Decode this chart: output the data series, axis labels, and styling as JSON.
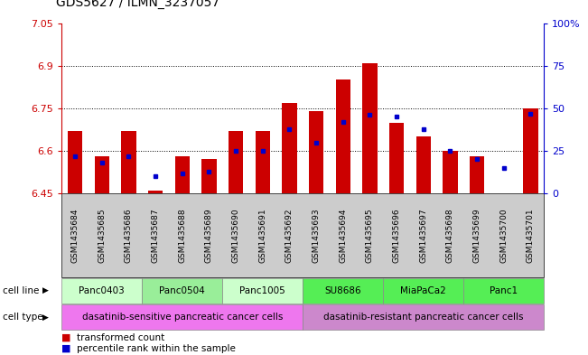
{
  "title": "GDS5627 / ILMN_3237057",
  "samples": [
    "GSM1435684",
    "GSM1435685",
    "GSM1435686",
    "GSM1435687",
    "GSM1435688",
    "GSM1435689",
    "GSM1435690",
    "GSM1435691",
    "GSM1435692",
    "GSM1435693",
    "GSM1435694",
    "GSM1435695",
    "GSM1435696",
    "GSM1435697",
    "GSM1435698",
    "GSM1435699",
    "GSM1435700",
    "GSM1435701"
  ],
  "bar_values": [
    6.67,
    6.58,
    6.67,
    6.46,
    6.58,
    6.57,
    6.67,
    6.67,
    6.77,
    6.74,
    6.85,
    6.91,
    6.7,
    6.65,
    6.6,
    6.58,
    6.45,
    6.75
  ],
  "percentile_values": [
    22,
    18,
    22,
    10,
    12,
    13,
    25,
    25,
    38,
    30,
    42,
    46,
    45,
    38,
    25,
    20,
    15,
    47
  ],
  "ymin": 6.45,
  "ymax": 7.05,
  "yticks": [
    6.45,
    6.6,
    6.75,
    6.9,
    7.05
  ],
  "ytick_labels": [
    "6.45",
    "6.6",
    "6.75",
    "6.9",
    "7.05"
  ],
  "right_yticks": [
    0,
    25,
    50,
    75,
    100
  ],
  "right_ytick_labels": [
    "0",
    "25",
    "50",
    "75",
    "100%"
  ],
  "bar_color": "#cc0000",
  "dot_color": "#0000cc",
  "baseline": 6.45,
  "cell_lines": [
    {
      "label": "Panc0403",
      "start": 0,
      "end": 3,
      "color": "#ccffcc"
    },
    {
      "label": "Panc0504",
      "start": 3,
      "end": 6,
      "color": "#99ee99"
    },
    {
      "label": "Panc1005",
      "start": 6,
      "end": 9,
      "color": "#ccffcc"
    },
    {
      "label": "SU8686",
      "start": 9,
      "end": 12,
      "color": "#55ee55"
    },
    {
      "label": "MiaPaCa2",
      "start": 12,
      "end": 15,
      "color": "#55ee55"
    },
    {
      "label": "Panc1",
      "start": 15,
      "end": 18,
      "color": "#55ee55"
    }
  ],
  "cell_types": [
    {
      "label": "dasatinib-sensitive pancreatic cancer cells",
      "start": 0,
      "end": 9,
      "color": "#ee77ee"
    },
    {
      "label": "dasatinib-resistant pancreatic cancer cells",
      "start": 9,
      "end": 18,
      "color": "#cc88cc"
    }
  ],
  "legend_items": [
    {
      "label": "transformed count",
      "color": "#cc0000"
    },
    {
      "label": "percentile rank within the sample",
      "color": "#0000cc"
    }
  ],
  "left_axis_color": "#cc0000",
  "right_axis_color": "#0000cc",
  "grid_color": "#000000",
  "plot_bg_color": "#ffffff",
  "xtick_bg_color": "#cccccc"
}
